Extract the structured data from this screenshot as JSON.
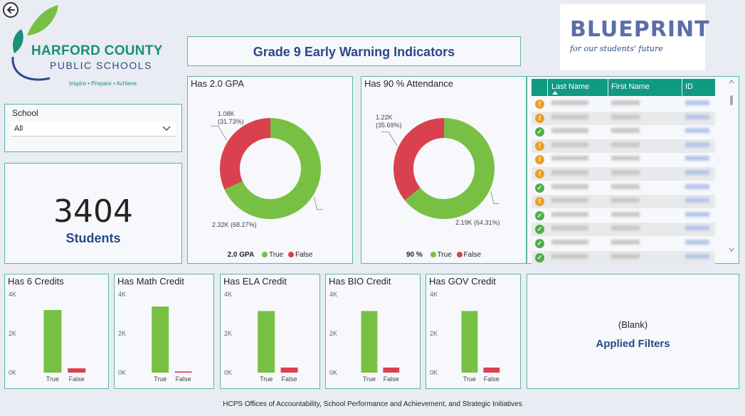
{
  "logo": {
    "name": "HARFORD COUNTY",
    "sub": "PUBLIC SCHOOLS",
    "tagline": "Inspire • Prepare • Achieve"
  },
  "title": "Grade 9 Early Warning Indicators",
  "blueprint": {
    "word": "BLUEPRINT",
    "tagline": "for our students' future"
  },
  "school_slicer": {
    "label": "School",
    "value": "All"
  },
  "students": {
    "count": "3404",
    "label": "Students"
  },
  "donuts": [
    {
      "title": "Has 2.0 GPA",
      "legend_title": "2.0 GPA",
      "legend_true": "True",
      "legend_false": "False",
      "false_label": "1.08K",
      "false_pct": "(31.73%)",
      "true_label": "2.32K (68.27%)",
      "false_fraction": 0.3173
    },
    {
      "title": "Has 90 % Attendance",
      "legend_title": "90 %",
      "legend_true": "True",
      "legend_false": "False",
      "false_label": "1.22K",
      "false_pct": "(35.69%)",
      "true_label": "2.19K (64.31%)",
      "false_fraction": 0.3569
    }
  ],
  "table": {
    "headers": [
      "Last Name",
      "First Name",
      "ID"
    ],
    "rows": [
      {
        "status": "warn"
      },
      {
        "status": "warn"
      },
      {
        "status": "ok"
      },
      {
        "status": "warn"
      },
      {
        "status": "warn"
      },
      {
        "status": "warn"
      },
      {
        "status": "ok"
      },
      {
        "status": "warn"
      },
      {
        "status": "ok"
      },
      {
        "status": "ok"
      },
      {
        "status": "ok"
      },
      {
        "status": "ok"
      }
    ]
  },
  "chart_data": [
    {
      "type": "pie",
      "title": "Has 2.0 GPA",
      "categories": [
        "True",
        "False"
      ],
      "values": [
        2320,
        1080
      ],
      "labels": [
        "2.32K (68.27%)",
        "1.08K (31.73%)"
      ]
    },
    {
      "type": "pie",
      "title": "Has 90 % Attendance",
      "categories": [
        "True",
        "False"
      ],
      "values": [
        2190,
        1220
      ],
      "labels": [
        "2.19K (64.31%)",
        "1.22K (35.69%)"
      ]
    },
    {
      "type": "bar",
      "title": "Has 6 Credits",
      "categories": [
        "True",
        "False"
      ],
      "values": [
        3200,
        220
      ],
      "ylim": [
        0,
        4000
      ],
      "ticks": [
        "4K",
        "2K",
        "0K"
      ]
    },
    {
      "type": "bar",
      "title": "Has Math Credit",
      "categories": [
        "True",
        "False"
      ],
      "values": [
        3380,
        60
      ],
      "ylim": [
        0,
        4000
      ],
      "ticks": [
        "4K",
        "2K",
        "0K"
      ]
    },
    {
      "type": "bar",
      "title": "Has ELA Credit",
      "categories": [
        "True",
        "False"
      ],
      "values": [
        3150,
        260
      ],
      "ylim": [
        0,
        4000
      ],
      "ticks": [
        "4K",
        "2K",
        "0K"
      ]
    },
    {
      "type": "bar",
      "title": "Has BIO Credit",
      "categories": [
        "True",
        "False"
      ],
      "values": [
        3150,
        260
      ],
      "ylim": [
        0,
        4000
      ],
      "ticks": [
        "4K",
        "2K",
        "0K"
      ]
    },
    {
      "type": "bar",
      "title": "Has GOV Credit",
      "categories": [
        "True",
        "False"
      ],
      "values": [
        3150,
        260
      ],
      "ylim": [
        0,
        4000
      ],
      "ticks": [
        "4K",
        "2K",
        "0K"
      ]
    }
  ],
  "colors": {
    "true": "#78c043",
    "false": "#d9414f",
    "accent": "#2a4a86",
    "border": "#5bb6a8"
  },
  "filters": {
    "blank": "(Blank)",
    "label": "Applied Filters"
  },
  "footer": "HCPS Offices of Accountability, School Performance and Achievement, and Strategic Initiatives"
}
